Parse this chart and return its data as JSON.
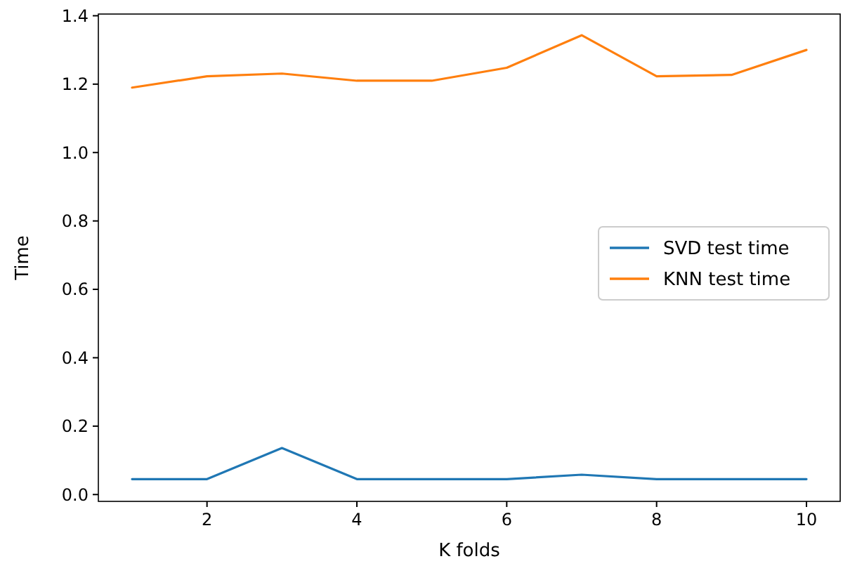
{
  "chart_data": {
    "type": "line",
    "xlabel": "K folds",
    "ylabel": "Time",
    "x": [
      1,
      2,
      3,
      4,
      5,
      6,
      7,
      8,
      9,
      10
    ],
    "series": [
      {
        "name": "SVD test time",
        "color": "#1f77b4",
        "values": [
          0.045,
          0.045,
          0.136,
          0.045,
          0.045,
          0.045,
          0.058,
          0.045,
          0.045,
          0.045
        ]
      },
      {
        "name": "KNN test time",
        "color": "#ff7f0e",
        "values": [
          1.19,
          1.223,
          1.231,
          1.21,
          1.21,
          1.248,
          1.343,
          1.223,
          1.227,
          1.3
        ]
      }
    ],
    "xlim": [
      0.55,
      10.45
    ],
    "xticks": [
      2,
      4,
      6,
      8,
      10
    ],
    "ylim": [
      -0.02,
      1.405
    ],
    "yticks": [
      {
        "value": 0,
        "label": "0.0"
      },
      {
        "value": 0.2,
        "label": "0.2"
      },
      {
        "value": 0.4,
        "label": "0.4"
      },
      {
        "value": 0.6,
        "label": "0.6"
      },
      {
        "value": 0.8,
        "label": "0.8"
      },
      {
        "value": 1,
        "label": "1.0"
      },
      {
        "value": 1.2,
        "label": "1.2"
      },
      {
        "value": 1.4,
        "label": "1.4"
      }
    ],
    "legend": "right",
    "grid": false
  }
}
